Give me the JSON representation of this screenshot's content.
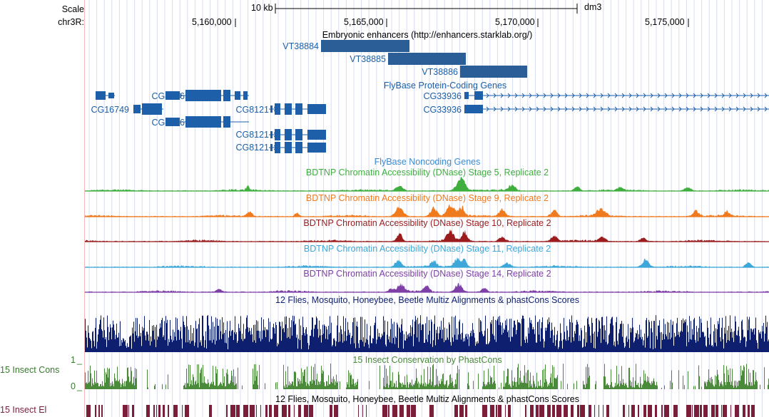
{
  "ruler": {
    "scale_label": "Scale",
    "chrom_label": "chr3R:",
    "scale_value": "10 kb",
    "assembly": "dm3",
    "ticks": [
      "5,160,000",
      "5,165,000",
      "5,170,000",
      "5,175,000"
    ]
  },
  "enhancers": {
    "title": "Embryonic enhancers (http://enhancers.starklab.org/)",
    "items": [
      {
        "name": "VT38884"
      },
      {
        "name": "VT38885"
      },
      {
        "name": "VT38886"
      }
    ]
  },
  "genes": {
    "title": "FlyBase Protein-Coding Genes",
    "labels": [
      "CG12951",
      "CG16749",
      "CG8866",
      "CG8866",
      "CG8121",
      "CG8121",
      "CG8121",
      "CG33936",
      "CG33936"
    ]
  },
  "noncoding": {
    "title": "FlyBase Noncoding Genes"
  },
  "dnase": [
    {
      "title": "BDTNP Chromatin Accessibility (DNase) Stage 5, Replicate 2",
      "color": "#3fae3f"
    },
    {
      "title": "BDTNP Chromatin Accessibility (DNase) Stage 9, Replicate 2",
      "color": "#f07a1e"
    },
    {
      "title": "BDTNP Chromatin Accessibility (DNase) Stage 10, Replicate 2",
      "color": "#9a1c1c"
    },
    {
      "title": "BDTNP Chromatin Accessibility (DNase) Stage 11, Replicate 2",
      "color": "#3ca7d8"
    },
    {
      "title": "BDTNP Chromatin Accessibility (DNase) Stage 14, Replicate 2",
      "color": "#7e40a6"
    }
  ],
  "multiz": {
    "title": "12 Flies, Mosquito, Honeybee, Beetle Multiz Alignments & phastCons Scores",
    "color": "#0d1f6e"
  },
  "phastcons": {
    "title": "15 Insect Conservation by PhastCons",
    "left_label": "15 Insect Cons",
    "axis_top": "1",
    "axis_bottom": "0",
    "color": "#4a8a3a"
  },
  "elements": {
    "title": "12 Flies, Mosquito, Honeybee, Beetle Multiz Alignments & phastCons Scores",
    "left_label": "15 Insect El",
    "color": "#7a1e3a"
  },
  "colors": {
    "gene": "#1d5fa8",
    "enhancer": "#2b5d97",
    "label_blue": "#1a5fa8"
  }
}
